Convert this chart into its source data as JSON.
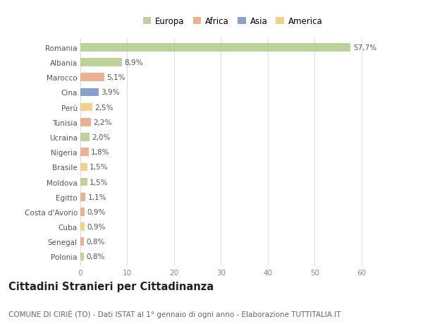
{
  "countries": [
    "Romania",
    "Albania",
    "Marocco",
    "Cina",
    "Perù",
    "Tunisia",
    "Ucraina",
    "Nigeria",
    "Brasile",
    "Moldova",
    "Egitto",
    "Costa d'Avorio",
    "Cuba",
    "Senegal",
    "Polonia"
  ],
  "values": [
    57.7,
    8.9,
    5.1,
    3.9,
    2.5,
    2.2,
    2.0,
    1.8,
    1.5,
    1.5,
    1.1,
    0.9,
    0.9,
    0.8,
    0.8
  ],
  "labels": [
    "57,7%",
    "8,9%",
    "5,1%",
    "3,9%",
    "2,5%",
    "2,2%",
    "2,0%",
    "1,8%",
    "1,5%",
    "1,5%",
    "1,1%",
    "0,9%",
    "0,9%",
    "0,8%",
    "0,8%"
  ],
  "colors": [
    "#aec984",
    "#aec984",
    "#e8a07a",
    "#6b8dbf",
    "#f0c96e",
    "#e8a07a",
    "#aec984",
    "#e8a07a",
    "#f0c96e",
    "#aec984",
    "#e8a07a",
    "#e8a07a",
    "#f0c96e",
    "#e8a07a",
    "#aec984"
  ],
  "legend_labels": [
    "Europa",
    "Africa",
    "Asia",
    "America"
  ],
  "legend_colors": [
    "#aec984",
    "#e8a07a",
    "#6b8dbf",
    "#f0c96e"
  ],
  "title": "Cittadini Stranieri per Cittadinanza",
  "subtitle": "COMUNE DI CIRIÈ (TO) - Dati ISTAT al 1° gennaio di ogni anno - Elaborazione TUTTITALIA.IT",
  "xlim": [
    0,
    65
  ],
  "xticks": [
    0,
    10,
    20,
    30,
    40,
    50,
    60
  ],
  "background_color": "#ffffff",
  "plot_bg_color": "#ffffff",
  "grid_color": "#dddddd",
  "bar_height": 0.55,
  "label_fontsize": 7.5,
  "tick_fontsize": 7.5,
  "title_fontsize": 10.5,
  "subtitle_fontsize": 7.5,
  "legend_fontsize": 8.5
}
